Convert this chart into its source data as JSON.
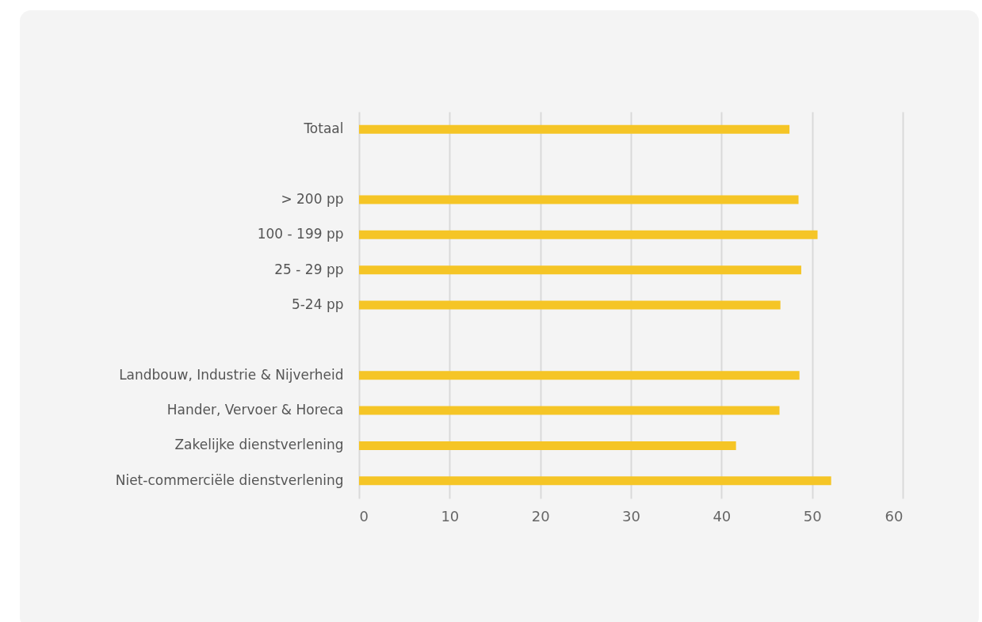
{
  "chart_data": {
    "type": "bar",
    "orientation": "horizontal",
    "categories": [
      "Totaal",
      null,
      "> 200 pp",
      "100 - 199 pp",
      "25 - 29 pp",
      "5-24 pp",
      null,
      "Landbouw, Industrie & Nijverheid",
      "Hander, Vervoer & Horeca",
      "Zakelijke dienstverlening",
      "Niet-commerciële dienstverlening"
    ],
    "values": [
      47.5,
      null,
      48.5,
      50.6,
      48.8,
      46.5,
      null,
      48.6,
      46.4,
      41.6,
      52.1
    ],
    "color": "#f5c526",
    "xlim": [
      0,
      60
    ],
    "xticks": [
      0,
      10,
      20,
      30,
      40,
      50,
      60
    ],
    "grid": "x"
  }
}
